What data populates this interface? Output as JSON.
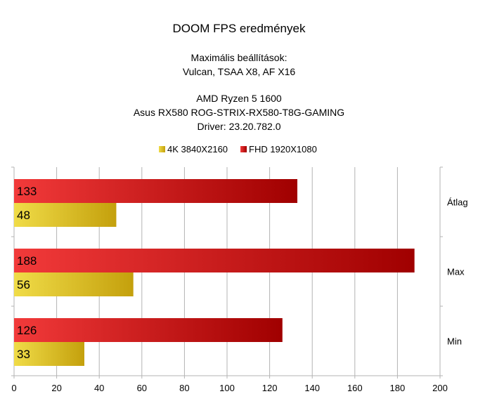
{
  "chart_data": {
    "type": "bar",
    "orientation": "horizontal",
    "title": "DOOM FPS eredmények",
    "subtitle_lines": [
      "Maximális beállítások:",
      "Vulcan, TSAA X8, AF X16",
      "",
      "AMD Ryzen 5 1600",
      "Asus RX580 ROG-STRIX-RX580-T8G-GAMING",
      "Driver: 23.20.782.0"
    ],
    "categories": [
      "Átlag",
      "Max",
      "Min"
    ],
    "series": [
      {
        "name": "4K 3840X2160",
        "values": [
          48,
          56,
          33
        ],
        "color": "#e8d030",
        "color_dark": "#c8a810"
      },
      {
        "name": "FHD 1920X1080",
        "values": [
          133,
          188,
          126
        ],
        "color": "#ee2828",
        "color_dark": "#a80000"
      }
    ],
    "xlim": [
      0,
      200
    ],
    "xticks": [
      0,
      20,
      40,
      60,
      80,
      100,
      120,
      140,
      160,
      180,
      200
    ],
    "grid": true,
    "legend_position": "top"
  }
}
